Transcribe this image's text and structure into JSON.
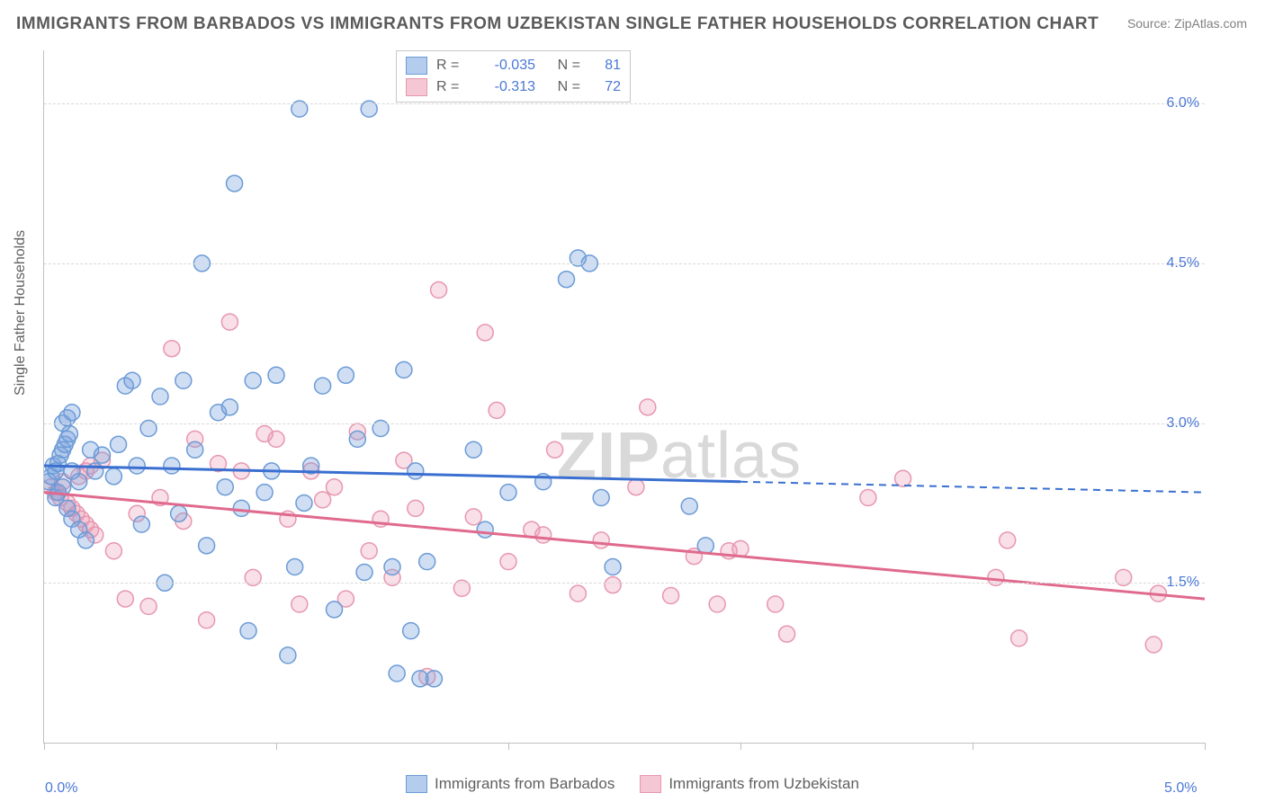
{
  "title": "IMMIGRANTS FROM BARBADOS VS IMMIGRANTS FROM UZBEKISTAN SINGLE FATHER HOUSEHOLDS CORRELATION CHART",
  "source": "Source: ZipAtlas.com",
  "ylabel": "Single Father Households",
  "watermark_zip": "ZIP",
  "watermark_atlas": "atlas",
  "chart": {
    "type": "scatter",
    "xlim": [
      0.0,
      5.0
    ],
    "ylim": [
      0.0,
      6.5
    ],
    "yticks": [
      {
        "v": 1.5,
        "label": "1.5%"
      },
      {
        "v": 3.0,
        "label": "3.0%"
      },
      {
        "v": 4.5,
        "label": "4.5%"
      },
      {
        "v": 6.0,
        "label": "6.0%"
      }
    ],
    "xticks_major": [
      0.0,
      1.0,
      2.0,
      3.0,
      4.0,
      5.0
    ],
    "xtick_labels": [
      {
        "v": 0.0,
        "label": "0.0%"
      },
      {
        "v": 5.0,
        "label": "5.0%"
      }
    ],
    "background_color": "#ffffff",
    "grid_color": "#d8d8d8",
    "marker_radius": 9,
    "marker_stroke_width": 1.5,
    "series": [
      {
        "name": "Immigrants from Barbados",
        "color_fill": "rgba(120,160,220,0.35)",
        "color_stroke": "#6b9bd6",
        "swatch_fill": "#b4cdee",
        "swatch_stroke": "#6b9bd6",
        "R": "-0.035",
        "N": "81",
        "trend": {
          "x1": 0.0,
          "y1": 2.6,
          "x2_solid": 3.0,
          "y2_solid": 2.45,
          "x2": 5.0,
          "y2": 2.35,
          "color": "#3a6fd0",
          "width": 3
        },
        "points": [
          [
            0.02,
            2.45
          ],
          [
            0.03,
            2.5
          ],
          [
            0.04,
            2.6
          ],
          [
            0.05,
            2.55
          ],
          [
            0.06,
            2.62
          ],
          [
            0.07,
            2.7
          ],
          [
            0.08,
            2.75
          ],
          [
            0.09,
            2.8
          ],
          [
            0.1,
            2.85
          ],
          [
            0.11,
            2.9
          ],
          [
            0.05,
            2.3
          ],
          [
            0.06,
            2.35
          ],
          [
            0.08,
            2.4
          ],
          [
            0.1,
            2.2
          ],
          [
            0.12,
            2.1
          ],
          [
            0.15,
            2.0
          ],
          [
            0.18,
            1.9
          ],
          [
            0.08,
            3.0
          ],
          [
            0.1,
            3.05
          ],
          [
            0.12,
            3.1
          ],
          [
            0.2,
            2.75
          ],
          [
            0.22,
            2.55
          ],
          [
            0.25,
            2.7
          ],
          [
            0.3,
            2.5
          ],
          [
            0.32,
            2.8
          ],
          [
            0.35,
            3.35
          ],
          [
            0.38,
            3.4
          ],
          [
            0.4,
            2.6
          ],
          [
            0.42,
            2.05
          ],
          [
            0.45,
            2.95
          ],
          [
            0.5,
            3.25
          ],
          [
            0.52,
            1.5
          ],
          [
            0.55,
            2.6
          ],
          [
            0.58,
            2.15
          ],
          [
            0.6,
            3.4
          ],
          [
            0.65,
            2.75
          ],
          [
            0.68,
            4.5
          ],
          [
            0.7,
            1.85
          ],
          [
            0.75,
            3.1
          ],
          [
            0.78,
            2.4
          ],
          [
            0.8,
            3.15
          ],
          [
            0.82,
            5.25
          ],
          [
            0.85,
            2.2
          ],
          [
            0.88,
            1.05
          ],
          [
            0.9,
            3.4
          ],
          [
            0.95,
            2.35
          ],
          [
            0.98,
            2.55
          ],
          [
            1.0,
            3.45
          ],
          [
            1.05,
            0.82
          ],
          [
            1.08,
            1.65
          ],
          [
            1.1,
            5.95
          ],
          [
            1.12,
            2.25
          ],
          [
            1.15,
            2.6
          ],
          [
            1.2,
            3.35
          ],
          [
            1.25,
            1.25
          ],
          [
            1.3,
            3.45
          ],
          [
            1.35,
            2.85
          ],
          [
            1.38,
            1.6
          ],
          [
            1.4,
            5.95
          ],
          [
            1.45,
            2.95
          ],
          [
            1.5,
            1.65
          ],
          [
            1.52,
            0.65
          ],
          [
            1.55,
            3.5
          ],
          [
            1.58,
            1.05
          ],
          [
            1.6,
            2.55
          ],
          [
            1.62,
            0.6
          ],
          [
            1.65,
            1.7
          ],
          [
            1.68,
            0.6
          ],
          [
            1.85,
            2.75
          ],
          [
            1.9,
            2.0
          ],
          [
            2.0,
            2.35
          ],
          [
            2.15,
            2.45
          ],
          [
            2.25,
            4.35
          ],
          [
            2.3,
            4.55
          ],
          [
            2.35,
            4.5
          ],
          [
            2.4,
            2.3
          ],
          [
            2.45,
            1.65
          ],
          [
            2.78,
            2.22
          ],
          [
            2.85,
            1.85
          ],
          [
            0.15,
            2.45
          ],
          [
            0.12,
            2.55
          ]
        ]
      },
      {
        "name": "Immigrants from Uzbekistan",
        "color_fill": "rgba(235,150,175,0.30)",
        "color_stroke": "#e797b0",
        "swatch_fill": "#f5c6d3",
        "swatch_stroke": "#e797b0",
        "R": "-0.313",
        "N": "72",
        "trend": {
          "x1": 0.0,
          "y1": 2.35,
          "x2_solid": 5.0,
          "y2_solid": 1.35,
          "x2": 5.0,
          "y2": 1.35,
          "color": "#e06a8e",
          "width": 3
        },
        "points": [
          [
            0.03,
            2.4
          ],
          [
            0.05,
            2.35
          ],
          [
            0.07,
            2.3
          ],
          [
            0.1,
            2.25
          ],
          [
            0.12,
            2.2
          ],
          [
            0.14,
            2.15
          ],
          [
            0.16,
            2.1
          ],
          [
            0.18,
            2.05
          ],
          [
            0.2,
            2.0
          ],
          [
            0.22,
            1.95
          ],
          [
            0.15,
            2.5
          ],
          [
            0.18,
            2.55
          ],
          [
            0.2,
            2.6
          ],
          [
            0.25,
            2.65
          ],
          [
            0.3,
            1.8
          ],
          [
            0.35,
            1.35
          ],
          [
            0.4,
            2.15
          ],
          [
            0.45,
            1.28
          ],
          [
            0.5,
            2.3
          ],
          [
            0.55,
            3.7
          ],
          [
            0.6,
            2.08
          ],
          [
            0.65,
            2.85
          ],
          [
            0.7,
            1.15
          ],
          [
            0.75,
            2.62
          ],
          [
            0.8,
            3.95
          ],
          [
            0.85,
            2.55
          ],
          [
            0.9,
            1.55
          ],
          [
            0.95,
            2.9
          ],
          [
            1.0,
            2.85
          ],
          [
            1.05,
            2.1
          ],
          [
            1.1,
            1.3
          ],
          [
            1.15,
            2.55
          ],
          [
            1.2,
            2.28
          ],
          [
            1.25,
            2.4
          ],
          [
            1.3,
            1.35
          ],
          [
            1.35,
            2.92
          ],
          [
            1.4,
            1.8
          ],
          [
            1.45,
            2.1
          ],
          [
            1.5,
            1.55
          ],
          [
            1.55,
            2.65
          ],
          [
            1.6,
            2.2
          ],
          [
            1.65,
            0.62
          ],
          [
            1.7,
            4.25
          ],
          [
            1.8,
            1.45
          ],
          [
            1.85,
            2.12
          ],
          [
            1.9,
            3.85
          ],
          [
            1.95,
            3.12
          ],
          [
            2.0,
            1.7
          ],
          [
            2.1,
            2.0
          ],
          [
            2.15,
            1.95
          ],
          [
            2.2,
            2.75
          ],
          [
            2.3,
            1.4
          ],
          [
            2.4,
            1.9
          ],
          [
            2.45,
            1.48
          ],
          [
            2.55,
            2.4
          ],
          [
            2.6,
            3.15
          ],
          [
            2.7,
            1.38
          ],
          [
            2.8,
            1.75
          ],
          [
            2.9,
            1.3
          ],
          [
            2.95,
            1.8
          ],
          [
            3.0,
            1.82
          ],
          [
            3.15,
            1.3
          ],
          [
            3.2,
            1.02
          ],
          [
            3.55,
            2.3
          ],
          [
            3.7,
            2.48
          ],
          [
            4.1,
            1.55
          ],
          [
            4.15,
            1.9
          ],
          [
            4.2,
            0.98
          ],
          [
            4.65,
            1.55
          ],
          [
            4.78,
            0.92
          ],
          [
            4.8,
            1.4
          ],
          [
            0.08,
            2.45
          ]
        ]
      }
    ]
  },
  "legend_labels": {
    "R": "R =",
    "N": "N ="
  }
}
